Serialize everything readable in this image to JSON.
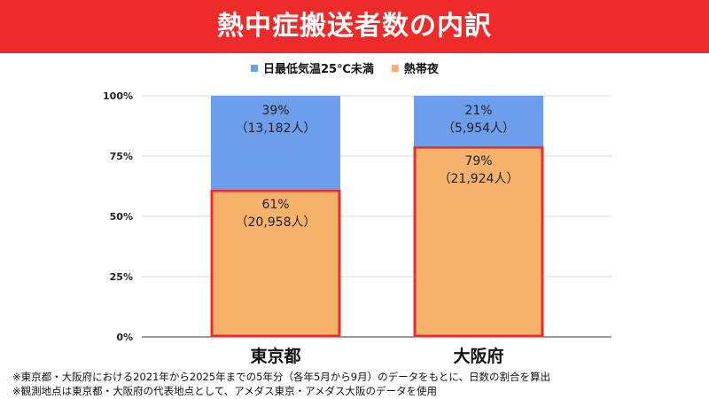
{
  "header": {
    "title": "熱中症搬送者数の内訳"
  },
  "colors": {
    "banner": "#ee2b2b",
    "series_low": "#6d9eeb",
    "series_night": "#f6b26b",
    "highlight": "#ee2b2b"
  },
  "chart_data": {
    "type": "bar",
    "stacked": true,
    "percent": true,
    "categories": [
      "東京都",
      "大阪府"
    ],
    "series": [
      {
        "name": "熱帯夜",
        "values": [
          61,
          79
        ],
        "labels": [
          "61%",
          "79%"
        ],
        "counts": [
          "（20,958人）",
          "（21,924人）"
        ],
        "highlighted": true
      },
      {
        "name": "日最低気温25℃未満",
        "values": [
          39,
          21
        ],
        "labels": [
          "39%",
          "21%"
        ],
        "counts": [
          "（13,182人）",
          "（5,954人）"
        ],
        "highlighted": false
      }
    ],
    "legend": [
      "日最低気温25℃未満",
      "熱帯夜"
    ],
    "legend_position": "top",
    "yticks": [
      "0%",
      "25%",
      "50%",
      "75%",
      "100%"
    ],
    "ylim": [
      0,
      100
    ],
    "grid": true
  },
  "notes": [
    "※東京都・大阪府における2021年から2025年までの5年分（各年5月から9月）のデータをもとに、日数の割合を算出",
    "※観測地点は東京都・大阪府の代表地点として、アメダス東京・アメダス大阪のデータを使用"
  ]
}
